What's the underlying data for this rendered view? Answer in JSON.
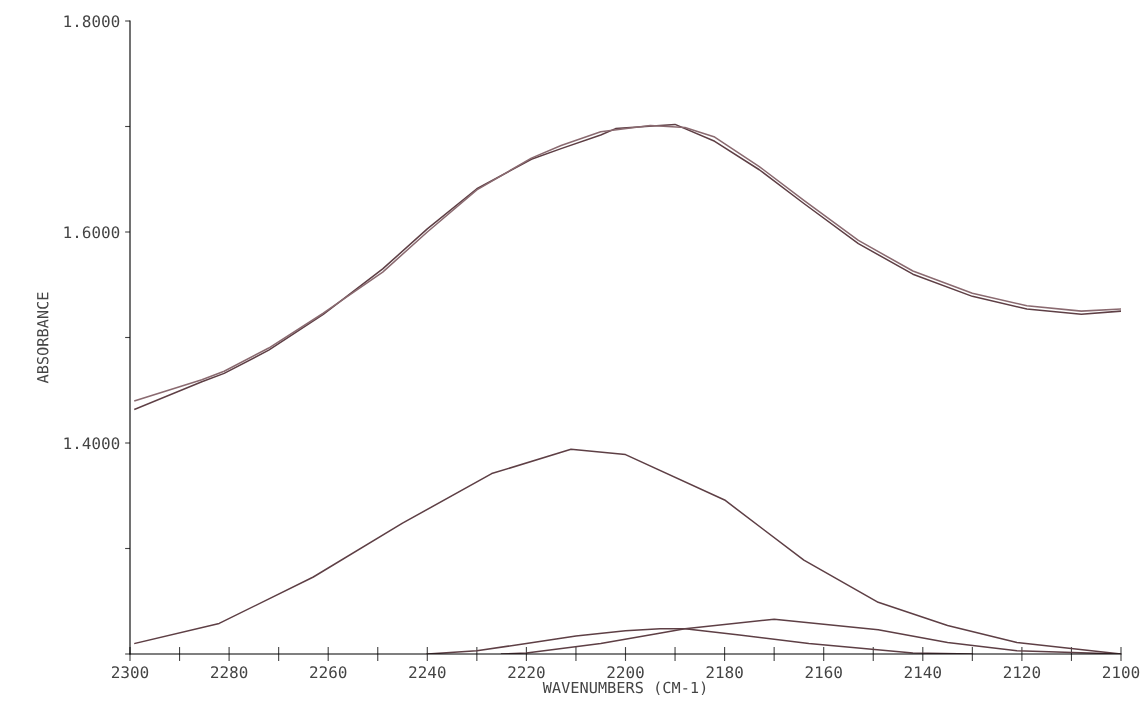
{
  "chart_data": {
    "type": "line",
    "xlabel": "WAVENUMBERS (CM-1)",
    "ylabel": "ABSORBANCE",
    "xlim": [
      2300,
      2100
    ],
    "ylim": [
      1.2,
      1.8
    ],
    "xticks": [
      {
        "value": 2300,
        "label": "2300"
      },
      {
        "value": 2290,
        "label": null
      },
      {
        "value": 2280,
        "label": "2280"
      },
      {
        "value": 2270,
        "label": null
      },
      {
        "value": 2260,
        "label": "2260"
      },
      {
        "value": 2250,
        "label": null
      },
      {
        "value": 2240,
        "label": "2240"
      },
      {
        "value": 2230,
        "label": null
      },
      {
        "value": 2220,
        "label": "2220"
      },
      {
        "value": 2210,
        "label": null
      },
      {
        "value": 2200,
        "label": "2200"
      },
      {
        "value": 2190,
        "label": null
      },
      {
        "value": 2180,
        "label": "2180"
      },
      {
        "value": 2170,
        "label": null
      },
      {
        "value": 2160,
        "label": "2160"
      },
      {
        "value": 2150,
        "label": null
      },
      {
        "value": 2140,
        "label": "2140"
      },
      {
        "value": 2130,
        "label": null
      },
      {
        "value": 2120,
        "label": "2120"
      },
      {
        "value": 2110,
        "label": null
      },
      {
        "value": 2100,
        "label": "2100"
      }
    ],
    "yticks": [
      {
        "value": 1.2,
        "label": null
      },
      {
        "value": 1.3,
        "label": null
      },
      {
        "value": 1.4,
        "label": "1.4000"
      },
      {
        "value": 1.5,
        "label": null
      },
      {
        "value": 1.6,
        "label": "1.6000"
      },
      {
        "value": 1.7,
        "label": null
      },
      {
        "value": 1.8,
        "label": "1.8000"
      }
    ],
    "grid": false,
    "legend": false,
    "line_style": "solid",
    "marker": "none",
    "series": [
      {
        "color": "#5e3f45",
        "x": [
          2299,
          2285.5,
          2281,
          2272,
          2261,
          2249,
          2240,
          2230,
          2219,
          2213,
          2205,
          2202,
          2190,
          2182,
          2173,
          2164,
          2153,
          2142,
          2130,
          2119,
          2108,
          2100
        ],
        "values": [
          1.432,
          1.458,
          1.466,
          1.488,
          1.522,
          1.565,
          1.603,
          1.641,
          1.669,
          1.679,
          1.692,
          1.698,
          1.702,
          1.686,
          1.659,
          1.627,
          1.589,
          1.56,
          1.539,
          1.527,
          1.522,
          1.525
        ]
      },
      {
        "color": "#8a6a70",
        "x": [
          2299,
          2285.5,
          2281,
          2272,
          2261,
          2249,
          2240,
          2230,
          2219,
          2213,
          2205,
          2195,
          2188,
          2182,
          2173,
          2164,
          2153,
          2142,
          2130,
          2119,
          2108,
          2100
        ],
        "values": [
          1.44,
          1.46,
          1.468,
          1.49,
          1.523,
          1.562,
          1.6,
          1.64,
          1.67,
          1.682,
          1.695,
          1.701,
          1.699,
          1.69,
          1.662,
          1.63,
          1.592,
          1.563,
          1.542,
          1.53,
          1.525,
          1.527
        ]
      },
      {
        "color": "#5e3f45",
        "x": [
          2299,
          2282,
          2263,
          2245,
          2227,
          2211,
          2200,
          2180,
          2164,
          2149,
          2135,
          2121,
          2100
        ],
        "values": [
          1.21,
          1.229,
          1.273,
          1.324,
          1.371,
          1.394,
          1.389,
          1.346,
          1.289,
          1.249,
          1.227,
          1.211,
          1.2
        ]
      },
      {
        "color": "#5e3f45",
        "x": [
          2240,
          2230,
          2220,
          2210,
          2200,
          2193,
          2188,
          2177,
          2163,
          2142,
          2130
        ],
        "values": [
          1.2,
          1.203,
          1.21,
          1.217,
          1.222,
          1.224,
          1.224,
          1.218,
          1.21,
          1.201,
          1.2
        ]
      },
      {
        "color": "#5e3f45",
        "x": [
          2225,
          2220,
          2205,
          2194,
          2188,
          2170,
          2149,
          2135,
          2121,
          2100
        ],
        "values": [
          1.2,
          1.201,
          1.21,
          1.219,
          1.224,
          1.233,
          1.223,
          1.211,
          1.203,
          1.2
        ]
      }
    ]
  }
}
